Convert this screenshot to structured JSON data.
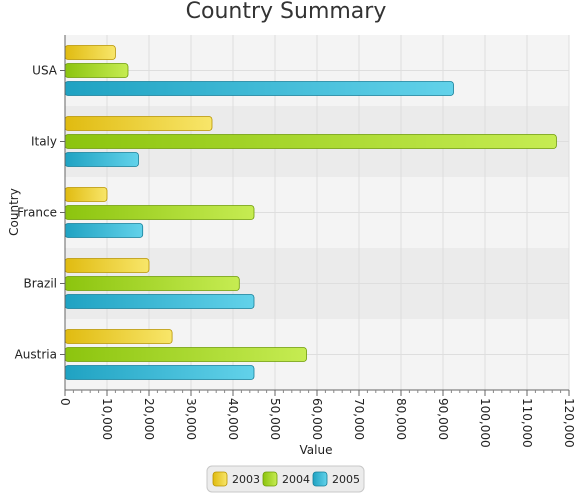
{
  "chart_data": {
    "type": "bar",
    "orientation": "horizontal",
    "title": "Country Summary",
    "xlabel": "Value",
    "ylabel": "Country",
    "xlim": [
      0,
      120000
    ],
    "x_ticks": [
      "0",
      "10,000",
      "20,000",
      "30,000",
      "40,000",
      "50,000",
      "60,000",
      "70,000",
      "80,000",
      "90,000",
      "100,000",
      "110,000",
      "120,000"
    ],
    "categories": [
      "Austria",
      "Brazil",
      "France",
      "Italy",
      "USA"
    ],
    "series": [
      {
        "name": "2003",
        "color": "#e8c21a",
        "values": [
          25500,
          20000,
          10000,
          35000,
          12000
        ]
      },
      {
        "name": "2004",
        "color": "#98cc16",
        "values": [
          57500,
          41500,
          45000,
          117000,
          15000
        ]
      },
      {
        "name": "2005",
        "color": "#2aa9c8",
        "values": [
          45000,
          45000,
          18500,
          17500,
          92500
        ]
      }
    ],
    "grid": true,
    "legend_position": "bottom"
  }
}
